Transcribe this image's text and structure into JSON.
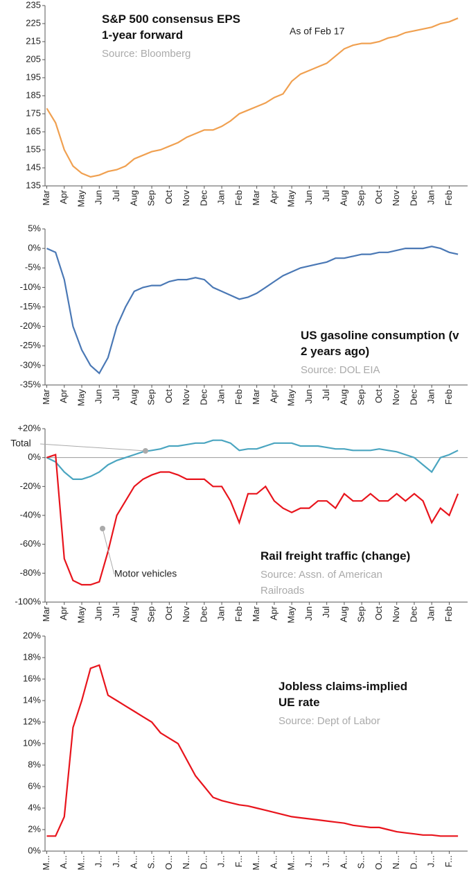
{
  "chart_data": [
    {
      "type": "line",
      "title": "S&P 500 consensus EPS 1-year forward",
      "subtitle": "Source: Bloomberg",
      "annotation": "As of Feb 17",
      "categories": [
        "Mar",
        null,
        "Apr",
        null,
        "May",
        null,
        "Jun",
        null,
        "Jul",
        null,
        "Aug",
        null,
        "Sep",
        null,
        "Oct",
        null,
        "Nov",
        null,
        "Dec",
        null,
        "Jan",
        null,
        "Feb",
        null,
        "Mar",
        null,
        "Apr",
        null,
        "May",
        null,
        "Jun",
        null,
        "Jul",
        null,
        "Aug",
        null,
        "Sep",
        null,
        "Oct",
        null,
        "Nov",
        null,
        "Dec",
        null,
        "Jan",
        null,
        "Feb",
        null
      ],
      "series": [
        {
          "color": "#f0a050",
          "values": [
            178,
            170,
            155,
            146,
            142,
            140,
            141,
            143,
            144,
            146,
            150,
            152,
            154,
            155,
            157,
            159,
            162,
            164,
            166,
            166,
            168,
            171,
            175,
            177,
            179,
            181,
            184,
            186,
            193,
            197,
            199,
            201,
            203,
            207,
            211,
            213,
            214,
            214,
            215,
            217,
            218,
            220,
            221,
            222,
            223,
            225,
            226,
            228
          ]
        }
      ],
      "ylim": [
        135,
        235
      ],
      "yticks": [
        135,
        145,
        155,
        165,
        175,
        185,
        195,
        205,
        215,
        225,
        235
      ]
    },
    {
      "type": "line",
      "title": "US gasoline consumption (v 2 years ago)",
      "subtitle": "Source: DOL EIA",
      "categories": [
        "Mar",
        null,
        "Apr",
        null,
        "May",
        null,
        "Jun",
        null,
        "Jul",
        null,
        "Aug",
        null,
        "Sep",
        null,
        "Oct",
        null,
        "Nov",
        null,
        "Dec",
        null,
        "Jan",
        null,
        "Feb",
        null,
        "Mar",
        null,
        "Apr",
        null,
        "May",
        null,
        "Jun",
        null,
        "Jul",
        null,
        "Aug",
        null,
        "Sep",
        null,
        "Oct",
        null,
        "Nov",
        null,
        "Dec",
        null,
        "Jan",
        null,
        "Feb",
        null
      ],
      "series": [
        {
          "color": "#4a78b5",
          "values": [
            0,
            -1,
            -8,
            -20,
            -26,
            -30,
            -32,
            -28,
            -20,
            -15,
            -11,
            -10,
            -9.5,
            -9.5,
            -8.5,
            -8,
            -8,
            -7.5,
            -8,
            -10,
            -11,
            -12,
            -13,
            -12.5,
            -11.5,
            -10,
            -8.5,
            -7,
            -6,
            -5,
            -4.5,
            -4,
            -3.5,
            -2.5,
            -2.5,
            -2,
            -1.5,
            -1.5,
            -1,
            -1,
            -0.5,
            0,
            0,
            0,
            0.5,
            0,
            -1,
            -1.5
          ]
        }
      ],
      "ylim": [
        -35,
        5
      ],
      "yticks": [
        {
          "value": -35,
          "label": "-35%"
        },
        {
          "value": -30,
          "label": "-30%"
        },
        {
          "value": -25,
          "label": "-25%"
        },
        {
          "value": -20,
          "label": "-20%"
        },
        {
          "value": -15,
          "label": "-15%"
        },
        {
          "value": -10,
          "label": "-10%"
        },
        {
          "value": -5,
          "label": "-5%"
        },
        {
          "value": 0,
          "label": "0%"
        },
        {
          "value": 5,
          "label": "5%"
        }
      ]
    },
    {
      "type": "line",
      "title": "Rail freight traffic (change)",
      "subtitle": "Source: Assn. of American Railroads",
      "categories": [
        "Mar",
        null,
        "Apr",
        null,
        "May",
        null,
        "Jun",
        null,
        "Jul",
        null,
        "Aug",
        null,
        "Sep",
        null,
        "Oct",
        null,
        "Nov",
        null,
        "Dec",
        null,
        "Jan",
        null,
        "Feb",
        null,
        "Mar",
        null,
        "Apr",
        null,
        "May",
        null,
        "Jun",
        null,
        "Jul",
        null,
        "Aug",
        null,
        "Sep",
        null,
        "Oct",
        null,
        "Nov",
        null,
        "Dec",
        null,
        "Jan",
        null,
        "Feb",
        null
      ],
      "series": [
        {
          "name": "Total",
          "color": "#4aa5c0",
          "values": [
            0,
            -3,
            -10,
            -15,
            -15,
            -13,
            -10,
            -5,
            -2,
            0,
            2,
            4,
            5,
            6,
            8,
            8,
            9,
            10,
            10,
            12,
            12,
            10,
            5,
            6,
            6,
            8,
            10,
            10,
            10,
            8,
            8,
            8,
            7,
            6,
            6,
            5,
            5,
            5,
            6,
            5,
            4,
            2,
            0,
            -5,
            -10,
            0,
            2,
            5
          ]
        },
        {
          "name": "Motor vehicles",
          "color": "#e8141c",
          "values": [
            0,
            2,
            -70,
            -85,
            -88,
            -88,
            -86,
            -65,
            -40,
            -30,
            -20,
            -15,
            -12,
            -10,
            -10,
            -12,
            -15,
            -15,
            -15,
            -20,
            -20,
            -30,
            -45,
            -25,
            -25,
            -20,
            -30,
            -35,
            -38,
            -35,
            -35,
            -30,
            -30,
            -35,
            -25,
            -30,
            -30,
            -25,
            -30,
            -30,
            -25,
            -30,
            -25,
            -30,
            -45,
            -35,
            -40,
            -25
          ]
        }
      ],
      "ylim": [
        -100,
        20
      ],
      "yticks": [
        {
          "value": -100,
          "label": "-100%"
        },
        {
          "value": -80,
          "label": "-80%"
        },
        {
          "value": -60,
          "label": "-60%"
        },
        {
          "value": -40,
          "label": "-40%"
        },
        {
          "value": -20,
          "label": "-20%"
        },
        {
          "value": 0,
          "label": "0%"
        },
        {
          "value": 20,
          "label": "+20%"
        }
      ],
      "zero_line": true
    },
    {
      "type": "line",
      "title": "Jobless claims-implied UE rate",
      "subtitle": "Source: Dept of Labor",
      "categories": [
        "M...",
        null,
        "A...",
        null,
        "M...",
        null,
        "J...",
        null,
        "J...",
        null,
        "A...",
        null,
        "S...",
        null,
        "O...",
        null,
        "N...",
        null,
        "D...",
        null,
        "J...",
        null,
        "F...",
        null,
        "M...",
        null,
        "A...",
        null,
        "M...",
        null,
        "J...",
        null,
        "J...",
        null,
        "A...",
        null,
        "S...",
        null,
        "O...",
        null,
        "N...",
        null,
        "D...",
        null,
        "J...",
        null,
        "F...",
        null
      ],
      "series": [
        {
          "color": "#e8141c",
          "values": [
            1.4,
            1.4,
            3.2,
            11.5,
            14,
            17,
            17.3,
            14.5,
            14,
            13.5,
            13,
            12.5,
            12,
            11,
            10.5,
            10,
            8.5,
            7,
            6,
            5,
            4.7,
            4.5,
            4.3,
            4.2,
            4.0,
            3.8,
            3.6,
            3.4,
            3.2,
            3.1,
            3.0,
            2.9,
            2.8,
            2.7,
            2.6,
            2.4,
            2.3,
            2.2,
            2.2,
            2.0,
            1.8,
            1.7,
            1.6,
            1.5,
            1.5,
            1.4,
            1.4,
            1.4
          ]
        }
      ],
      "ylim": [
        0,
        20
      ],
      "yticks": [
        {
          "value": 0,
          "label": "0%"
        },
        {
          "value": 2,
          "label": "2%"
        },
        {
          "value": 4,
          "label": "4%"
        },
        {
          "value": 6,
          "label": "6%"
        },
        {
          "value": 8,
          "label": "8%"
        },
        {
          "value": 10,
          "label": "10%"
        },
        {
          "value": 12,
          "label": "12%"
        },
        {
          "value": 14,
          "label": "14%"
        },
        {
          "value": 16,
          "label": "16%"
        },
        {
          "value": 18,
          "label": "18%"
        },
        {
          "value": 20,
          "label": "20%"
        }
      ]
    }
  ]
}
